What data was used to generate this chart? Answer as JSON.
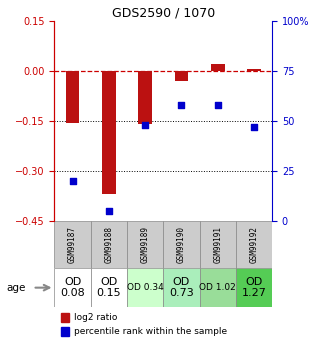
{
  "title": "GDS2590 / 1070",
  "samples": [
    "GSM99187",
    "GSM99188",
    "GSM99189",
    "GSM99190",
    "GSM99191",
    "GSM99192"
  ],
  "log2_ratio": [
    -0.155,
    -0.37,
    -0.16,
    -0.03,
    0.02,
    0.005
  ],
  "percentile": [
    20,
    5,
    48,
    58,
    58,
    47
  ],
  "od_bg_colors": [
    "#ffffff",
    "#ffffff",
    "#ccffcc",
    "#aaeebb",
    "#99dd99",
    "#55cc55"
  ],
  "bar_color": "#bb1111",
  "point_color": "#0000cc",
  "ymin": -0.45,
  "ymax": 0.15,
  "left_yticks": [
    0.15,
    0.0,
    -0.15,
    -0.3,
    -0.45
  ],
  "right_yticks": [
    100,
    75,
    50,
    25,
    0
  ],
  "dotted_lines": [
    -0.15,
    -0.3
  ],
  "sample_row_color": "#cccccc",
  "age_label": "age",
  "legend_log2": "log2 ratio",
  "legend_pct": "percentile rank within the sample"
}
